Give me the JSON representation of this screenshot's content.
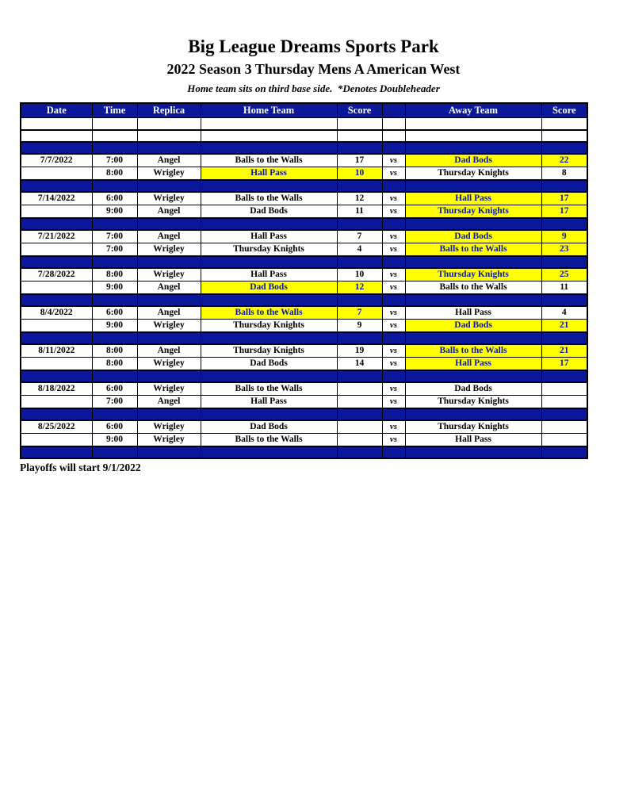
{
  "page": {
    "title": "Big League Dreams Sports Park",
    "subtitle": "2022 Season 3 Thursday Mens A American West",
    "note": "Home team sits on third base side.  *Denotes Doubleheader",
    "footer": "Playoffs will start 9/1/2022"
  },
  "colors": {
    "navy": "#0B1899",
    "yellow": "#FFFF00",
    "header_text": "#FFFFFF",
    "body_text": "#000000"
  },
  "table": {
    "columns": [
      "Date",
      "Time",
      "Replica",
      "Home Team",
      "Score",
      "",
      "Away Team",
      "Score"
    ],
    "vs_label": "vs",
    "blocks": [
      {
        "date": "7/7/2022",
        "games": [
          {
            "time": "7:00",
            "replica": "Angel",
            "home": "Balls to the Walls",
            "home_score": "17",
            "away": "Dad Bods",
            "away_score": "22",
            "winner": "away"
          },
          {
            "time": "8:00",
            "replica": "Wrigley",
            "home": "Hall Pass",
            "home_score": "10",
            "away": "Thursday Knights",
            "away_score": "8",
            "winner": "home"
          }
        ]
      },
      {
        "date": "7/14/2022",
        "games": [
          {
            "time": "6:00",
            "replica": "Wrigley",
            "home": "Balls to the Walls",
            "home_score": "12",
            "away": "Hall Pass",
            "away_score": "17",
            "winner": "away"
          },
          {
            "time": "9:00",
            "replica": "Angel",
            "home": "Dad Bods",
            "home_score": "11",
            "away": "Thursday Knights",
            "away_score": "17",
            "winner": "away"
          }
        ]
      },
      {
        "date": "7/21/2022",
        "games": [
          {
            "time": "7:00",
            "replica": "Angel",
            "home": "Hall Pass",
            "home_score": "7",
            "away": "Dad Bods",
            "away_score": "9",
            "winner": "away"
          },
          {
            "time": "7:00",
            "replica": "Wrigley",
            "home": "Thursday Knights",
            "home_score": "4",
            "away": "Balls to the Walls",
            "away_score": "23",
            "winner": "away"
          }
        ]
      },
      {
        "date": "7/28/2022",
        "games": [
          {
            "time": "8:00",
            "replica": "Wrigley",
            "home": "Hall Pass",
            "home_score": "10",
            "away": "Thursday Knights",
            "away_score": "25",
            "winner": "away"
          },
          {
            "time": "9:00",
            "replica": "Angel",
            "home": "Dad Bods",
            "home_score": "12",
            "away": "Balls to the Walls",
            "away_score": "11",
            "winner": "home"
          }
        ]
      },
      {
        "date": "8/4/2022",
        "games": [
          {
            "time": "6:00",
            "replica": "Angel",
            "home": "Balls to the Walls",
            "home_score": "7",
            "away": "Hall Pass",
            "away_score": "4",
            "winner": "home"
          },
          {
            "time": "9:00",
            "replica": "Wrigley",
            "home": "Thursday Knights",
            "home_score": "9",
            "away": "Dad Bods",
            "away_score": "21",
            "winner": "away"
          }
        ]
      },
      {
        "date": "8/11/2022",
        "games": [
          {
            "time": "8:00",
            "replica": "Angel",
            "home": "Thursday Knights",
            "home_score": "19",
            "away": "Balls to the Walls",
            "away_score": "21",
            "winner": "away"
          },
          {
            "time": "8:00",
            "replica": "Wrigley",
            "home": "Dad Bods",
            "home_score": "14",
            "away": "Hall Pass",
            "away_score": "17",
            "winner": "away"
          }
        ]
      },
      {
        "date": "8/18/2022",
        "games": [
          {
            "time": "6:00",
            "replica": "Wrigley",
            "home": "Balls to the Walls",
            "home_score": "",
            "away": "Dad Bods",
            "away_score": "",
            "winner": ""
          },
          {
            "time": "7:00",
            "replica": "Angel",
            "home": "Hall Pass",
            "home_score": "",
            "away": "Thursday Knights",
            "away_score": "",
            "winner": ""
          }
        ]
      },
      {
        "date": "8/25/2022",
        "games": [
          {
            "time": "6:00",
            "replica": "Wrigley",
            "home": "Dad Bods",
            "home_score": "",
            "away": "Thursday Knights",
            "away_score": "",
            "winner": ""
          },
          {
            "time": "9:00",
            "replica": "Wrigley",
            "home": "Balls to the Walls",
            "home_score": "",
            "away": "Hall Pass",
            "away_score": "",
            "winner": ""
          }
        ]
      }
    ]
  }
}
